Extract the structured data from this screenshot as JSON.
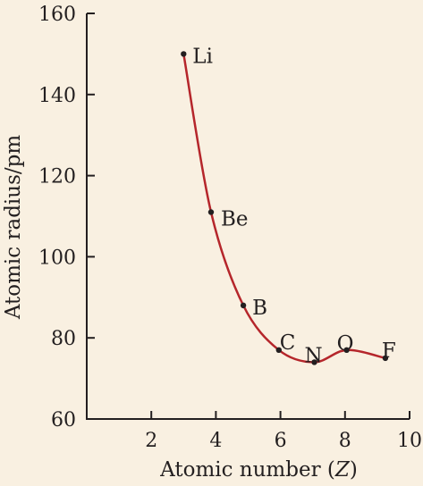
{
  "chart_data": {
    "type": "line",
    "title": "",
    "xlabel": "Atomic number (Z)",
    "xlabel_prefix": "Atomic number (",
    "xlabel_var": "Z",
    "xlabel_suffix": ")",
    "ylabel": "Atomic radius/pm",
    "xlim": [
      0,
      10
    ],
    "ylim": [
      60,
      160
    ],
    "x_ticks": [
      2,
      4,
      6,
      8,
      10
    ],
    "y_ticks": [
      60,
      80,
      100,
      120,
      140,
      160
    ],
    "grid": false,
    "series": [
      {
        "points": [
          {
            "label": "Li",
            "x": 3.0,
            "y": 150
          },
          {
            "label": "Be",
            "x": 3.85,
            "y": 111
          },
          {
            "label": "B",
            "x": 4.85,
            "y": 88
          },
          {
            "label": "C",
            "x": 5.95,
            "y": 77
          },
          {
            "label": "N",
            "x": 7.05,
            "y": 74
          },
          {
            "label": "O",
            "x": 8.05,
            "y": 77
          },
          {
            "label": "F",
            "x": 9.25,
            "y": 75
          }
        ]
      }
    ],
    "colors": {
      "curve": "#b5262b",
      "point": "#231f20",
      "axis": "#231f20",
      "background": "#f9f0e1"
    }
  }
}
